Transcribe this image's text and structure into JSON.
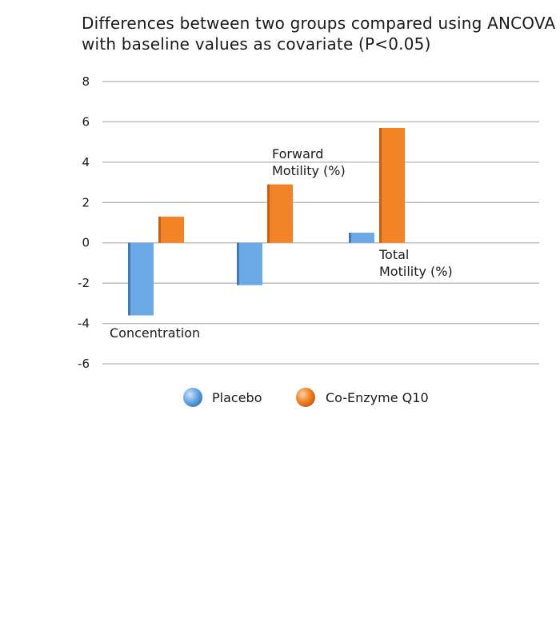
{
  "title_lines": [
    "Differences between two groups compared using ANCOVA",
    "with baseline values as covariate (P<0.05)"
  ],
  "colors": {
    "placebo": "#6aa9e6",
    "placebo_edge": "#3f79b8",
    "coq10": "#f28427",
    "coq10_edge": "#c75f12",
    "grid": "#bdbdbd"
  },
  "chart_data": {
    "type": "bar",
    "title": "Differences between two groups compared using ANCOVA with baseline values as covariate (P<0.05)",
    "categories": [
      "Concentration",
      "Forward Motility (%)",
      "Total Motility (%)"
    ],
    "category_label_lines": [
      [
        "Concentration"
      ],
      [
        "Forward",
        "Motility (%)"
      ],
      [
        "Total",
        "Motility (%)"
      ]
    ],
    "series": [
      {
        "name": "Placebo",
        "values": [
          -3.6,
          -2.1,
          0.5
        ]
      },
      {
        "name": "Co-Enzyme Q10",
        "values": [
          1.3,
          2.9,
          5.7
        ]
      }
    ],
    "ylim": [
      -6,
      8
    ],
    "yticks": [
      8,
      6,
      4,
      2,
      0,
      -2,
      -4,
      -6
    ],
    "grid": true,
    "legend": "bottom"
  }
}
